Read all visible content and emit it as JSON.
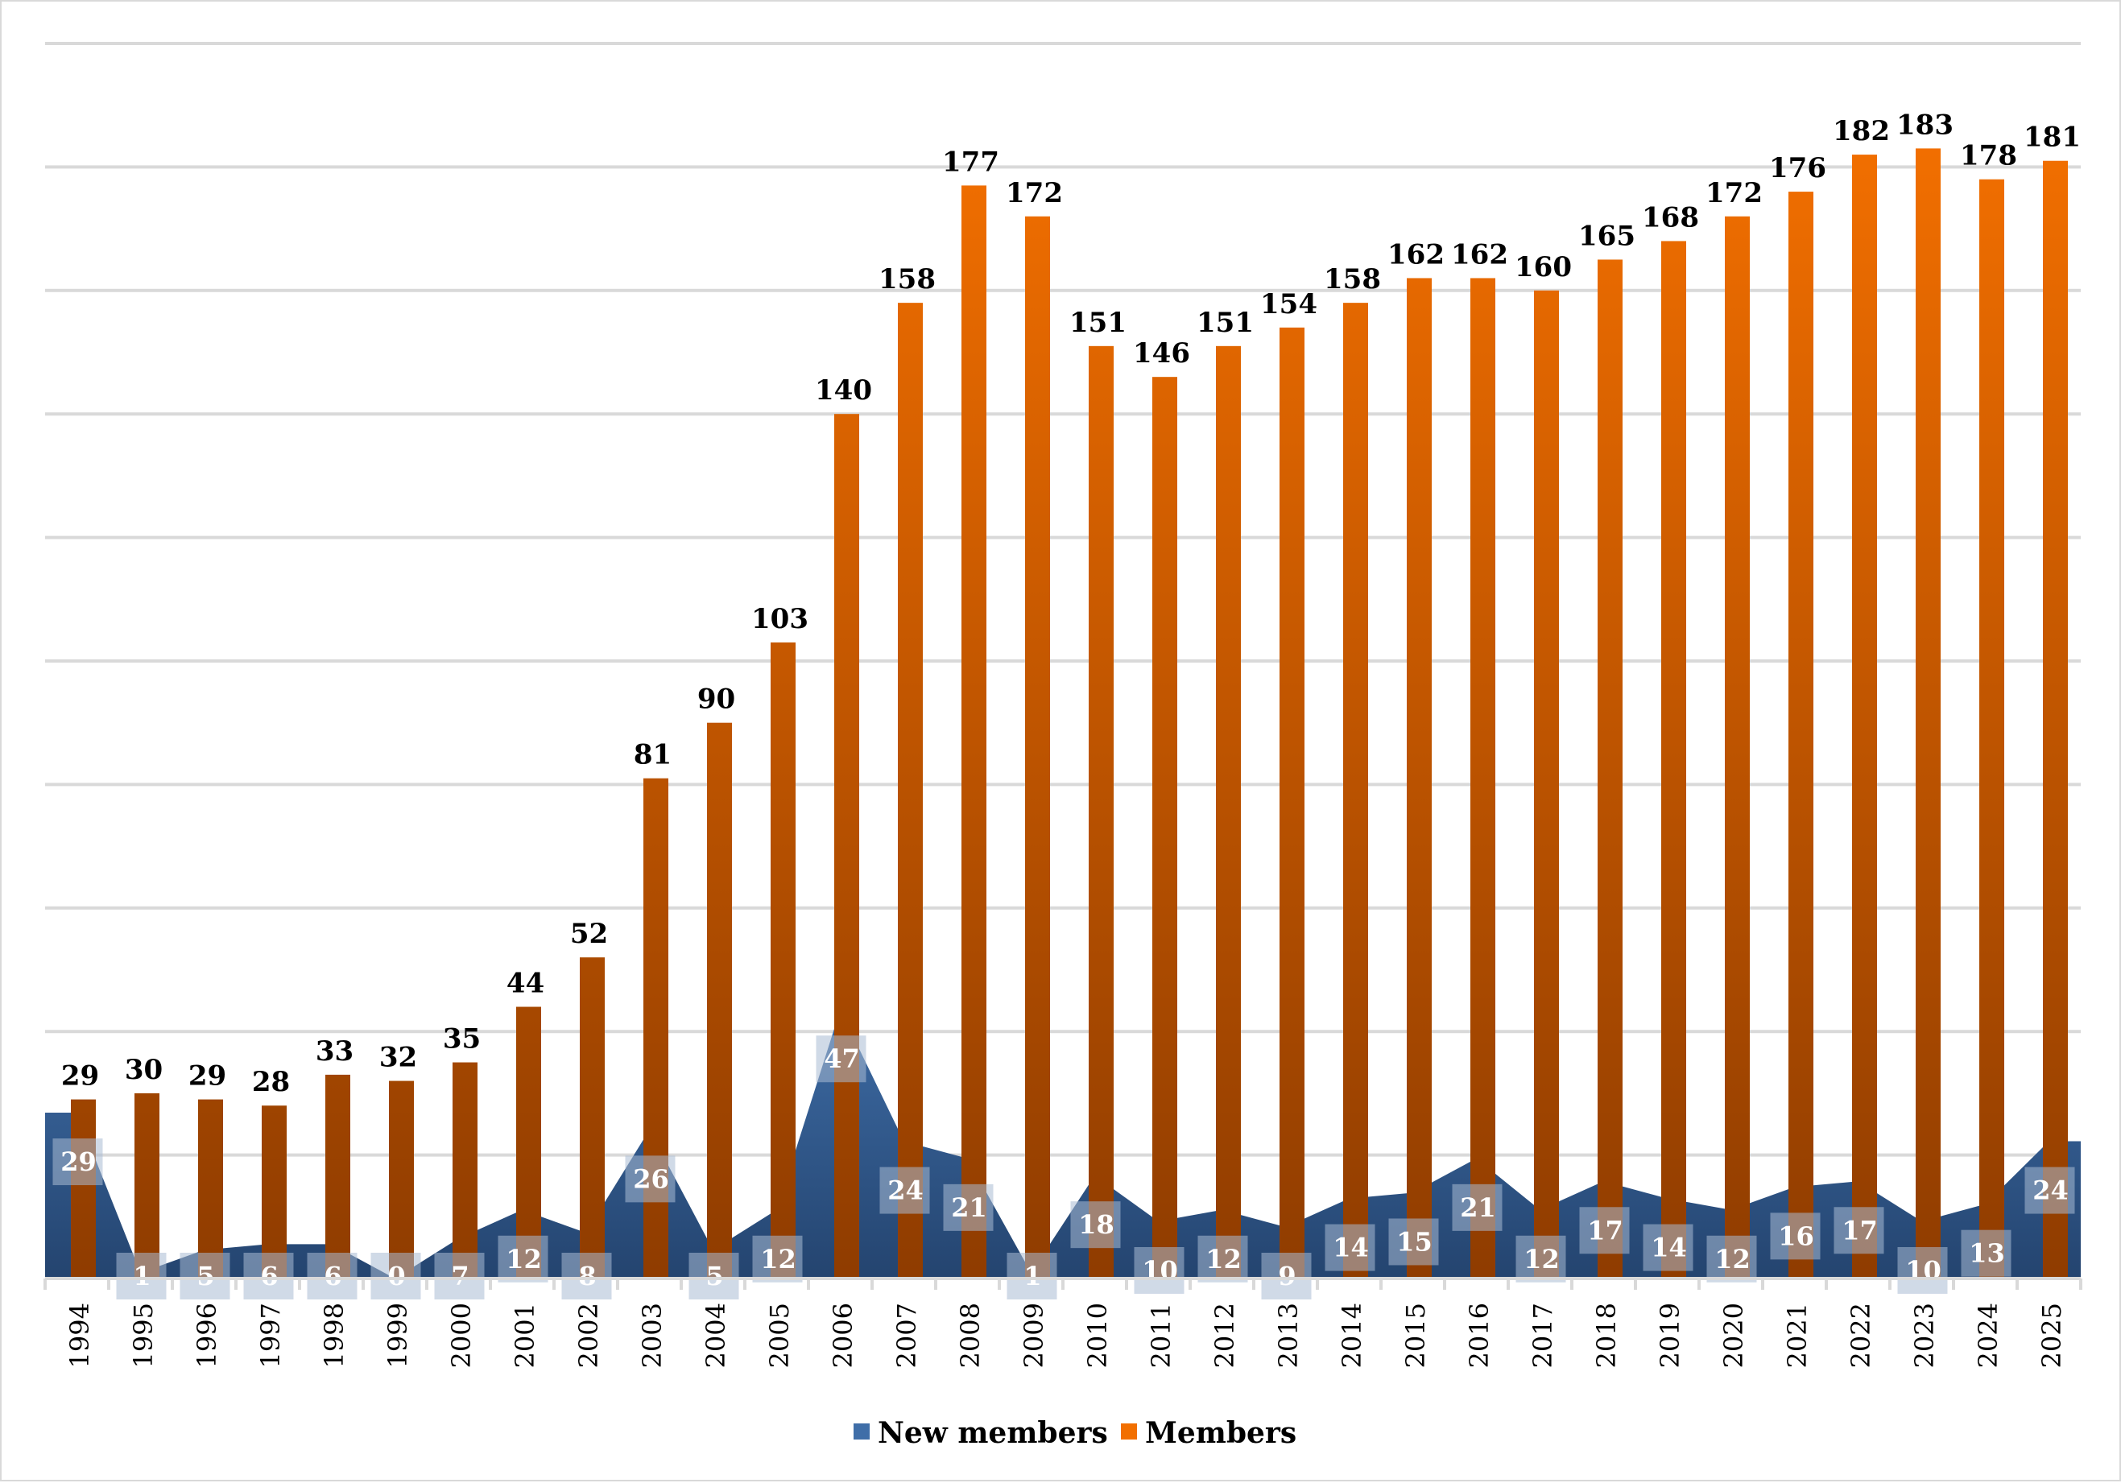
{
  "chart_data": {
    "type": "bar",
    "title": "",
    "xlabel": "",
    "ylabel": "",
    "categories": [
      "1994",
      "1995",
      "1996",
      "1997",
      "1998",
      "1999",
      "2000",
      "2001",
      "2002",
      "2003",
      "2004",
      "2005",
      "2006",
      "2007",
      "2008",
      "2009",
      "2010",
      "2011",
      "2012",
      "2013",
      "2014",
      "2015",
      "2016",
      "2017",
      "2018",
      "2019",
      "2020",
      "2021",
      "2022",
      "2023",
      "2024",
      "2025"
    ],
    "series": [
      {
        "name": "New members",
        "type": "area",
        "axis": "secondary",
        "color": "#3f6ea8",
        "color_dark": "#24446f",
        "values": [
          29,
          1,
          5,
          6,
          6,
          0,
          7,
          12,
          8,
          26,
          5,
          12,
          47,
          24,
          21,
          1,
          18,
          10,
          12,
          9,
          14,
          15,
          21,
          12,
          17,
          14,
          12,
          16,
          17,
          10,
          13,
          24
        ]
      },
      {
        "name": "Members",
        "type": "bar",
        "axis": "primary",
        "color": "#f26f00",
        "color_dark": "#8f3c00",
        "values": [
          29,
          30,
          29,
          28,
          33,
          32,
          35,
          44,
          52,
          81,
          90,
          103,
          140,
          158,
          177,
          172,
          151,
          146,
          151,
          154,
          158,
          162,
          162,
          160,
          165,
          168,
          172,
          176,
          182,
          183,
          178,
          181
        ]
      }
    ],
    "ylim": [
      0,
      200
    ],
    "y2lim": [
      0,
      216
    ],
    "grid": true,
    "y_axis_labels_visible": false,
    "data_labels": true,
    "legend": {
      "position": "bottom",
      "entries": [
        "New members",
        "Members"
      ]
    }
  }
}
